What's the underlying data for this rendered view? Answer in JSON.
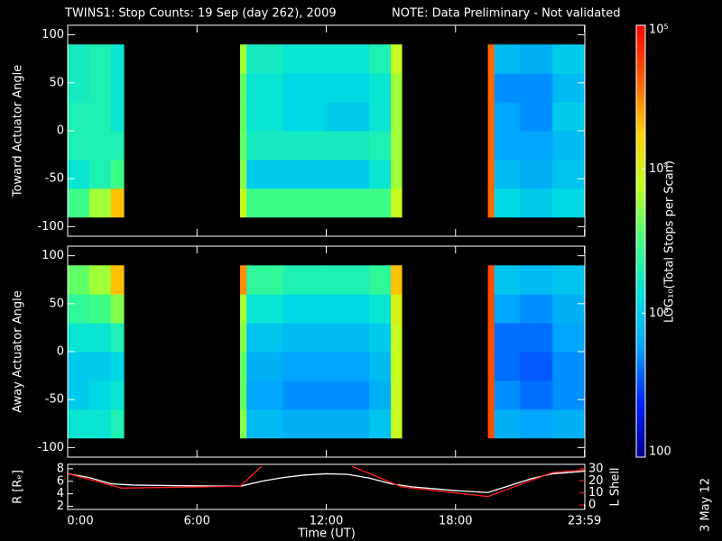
{
  "chart_data": [
    {
      "type": "spectrogram",
      "title": "TWINS1: Stop Counts: 19 Sep (day 262), 2009",
      "note": "NOTE: Data Preliminary - Not validated",
      "note_color": "#ff2020",
      "time_edges": [
        0,
        1.0,
        2.0,
        2.6,
        8.0,
        8.3,
        10,
        12,
        14,
        15.0,
        15.5,
        19.5,
        19.8,
        21,
        22.5,
        24
      ],
      "angle_edges": [
        -90,
        -60,
        -30,
        0,
        30,
        60,
        90
      ],
      "clim": [
        100,
        100000
      ],
      "log_color": true,
      "colormap": [
        "#00008c",
        "#0020ff",
        "#00a0ff",
        "#00e0e0",
        "#40ff80",
        "#c0ff20",
        "#ffd000",
        "#ff6000",
        "#ff0000"
      ],
      "cticks": [
        {
          "value": 100000,
          "label": "10⁵"
        },
        {
          "value": 10000,
          "label": "10⁴"
        },
        {
          "value": 1000,
          "label": "10³"
        },
        100
      ],
      "colorbar_label": "LOG₁₀(Total Stops per Scan)",
      "panels": [
        {
          "ylabel": "Toward Actuator Angle",
          "ylim": [
            -110,
            110
          ],
          "yticks": [
            100,
            50,
            0,
            -50,
            -100
          ],
          "z": [
            [
              3000,
              1500,
              2000,
              2000,
              1800,
              1800
            ],
            [
              6000,
              2000,
              2000,
              2000,
              2000,
              2000
            ],
            [
              20000,
              3000,
              2000,
              1500,
              1500,
              1500
            ],
            [
              null,
              null,
              null,
              null,
              null,
              null
            ],
            [
              8000,
              5000,
              4000,
              4000,
              4000,
              6000
            ],
            [
              3000,
              1000,
              1800,
              1500,
              1500,
              1800
            ],
            [
              3000,
              1000,
              1800,
              1200,
              1200,
              1500
            ],
            [
              3000,
              1000,
              1800,
              1000,
              1200,
              1500
            ],
            [
              3000,
              1500,
              2000,
              1500,
              1500,
              2000
            ],
            [
              8000,
              6000,
              6000,
              6000,
              6000,
              8000
            ],
            [
              null,
              null,
              null,
              null,
              null,
              null
            ],
            [
              40000,
              40000,
              40000,
              40000,
              40000,
              40000
            ],
            [
              1200,
              800,
              600,
              600,
              500,
              800
            ],
            [
              1000,
              700,
              600,
              500,
              500,
              700
            ],
            [
              1200,
              900,
              800,
              1000,
              800,
              1000
            ]
          ]
        },
        {
          "ylabel": "Away Actuator Angle",
          "ylim": [
            -110,
            110
          ],
          "yticks": [
            100,
            50,
            0,
            -50,
            -100
          ],
          "z": [
            [
              1500,
              1000,
              1000,
              1500,
              2500,
              4000
            ],
            [
              1500,
              1200,
              1000,
              1500,
              3000,
              6000
            ],
            [
              2000,
              1500,
              1200,
              2000,
              5000,
              20000
            ],
            [
              null,
              null,
              null,
              null,
              null,
              null
            ],
            [
              5000,
              4000,
              4000,
              5000,
              6000,
              30000
            ],
            [
              800,
              600,
              700,
              900,
              1500,
              2500
            ],
            [
              700,
              500,
              600,
              800,
              1200,
              2000
            ],
            [
              700,
              500,
              600,
              800,
              1200,
              2000
            ],
            [
              900,
              700,
              800,
              1000,
              1500,
              2500
            ],
            [
              8000,
              8000,
              8000,
              8000,
              10000,
              20000
            ],
            [
              null,
              null,
              null,
              null,
              null,
              null
            ],
            [
              50000,
              50000,
              50000,
              50000,
              50000,
              50000
            ],
            [
              700,
              500,
              400,
              400,
              600,
              900
            ],
            [
              600,
              400,
              350,
              400,
              500,
              800
            ],
            [
              700,
              500,
              500,
              600,
              700,
              900
            ]
          ]
        }
      ]
    },
    {
      "type": "line",
      "xlabel": "Time (UT)",
      "xlim": [
        0,
        24
      ],
      "xticks": [
        {
          "value": 0,
          "label": "0:00"
        },
        {
          "value": 6,
          "label": "6:00"
        },
        {
          "value": 12,
          "label": "12:00"
        },
        {
          "value": 18,
          "label": "18:00"
        },
        {
          "value": 23.983,
          "label": "23:59"
        }
      ],
      "ylabel": "R [Rₑ]",
      "ylim": [
        1.5,
        8.7
      ],
      "yticks": [
        2,
        4,
        6,
        8
      ],
      "y2label": "L Shell",
      "y2lim": [
        -3.7,
        33.7
      ],
      "y2ticks": [
        0,
        10,
        20,
        30
      ],
      "y2color": "#ff2020",
      "series": [
        {
          "name": "R",
          "color": "#ffffff",
          "x": [
            0,
            1,
            2,
            3,
            5,
            8,
            9,
            10,
            11,
            12,
            13,
            14,
            15,
            16,
            17,
            18,
            19.5,
            20.5,
            21.5,
            22.5,
            24
          ],
          "values": [
            7.2,
            6.6,
            5.6,
            5.4,
            5.3,
            5.2,
            6.0,
            6.6,
            7.0,
            7.2,
            7.1,
            6.5,
            5.6,
            5.1,
            4.8,
            4.5,
            4.2,
            5.3,
            6.4,
            7.2,
            7.6
          ]
        },
        {
          "name": "L Shell",
          "color": "#ff2020",
          "axis": "y2",
          "x": [
            0,
            2.5,
            8,
            9,
            11,
            13.2,
            15.5,
            19.5,
            22.5,
            24
          ],
          "values": [
            26,
            14,
            15.5,
            32,
            null,
            32,
            15,
            7,
            27,
            29
          ]
        }
      ],
      "date_stamp": "3 May 12"
    }
  ]
}
